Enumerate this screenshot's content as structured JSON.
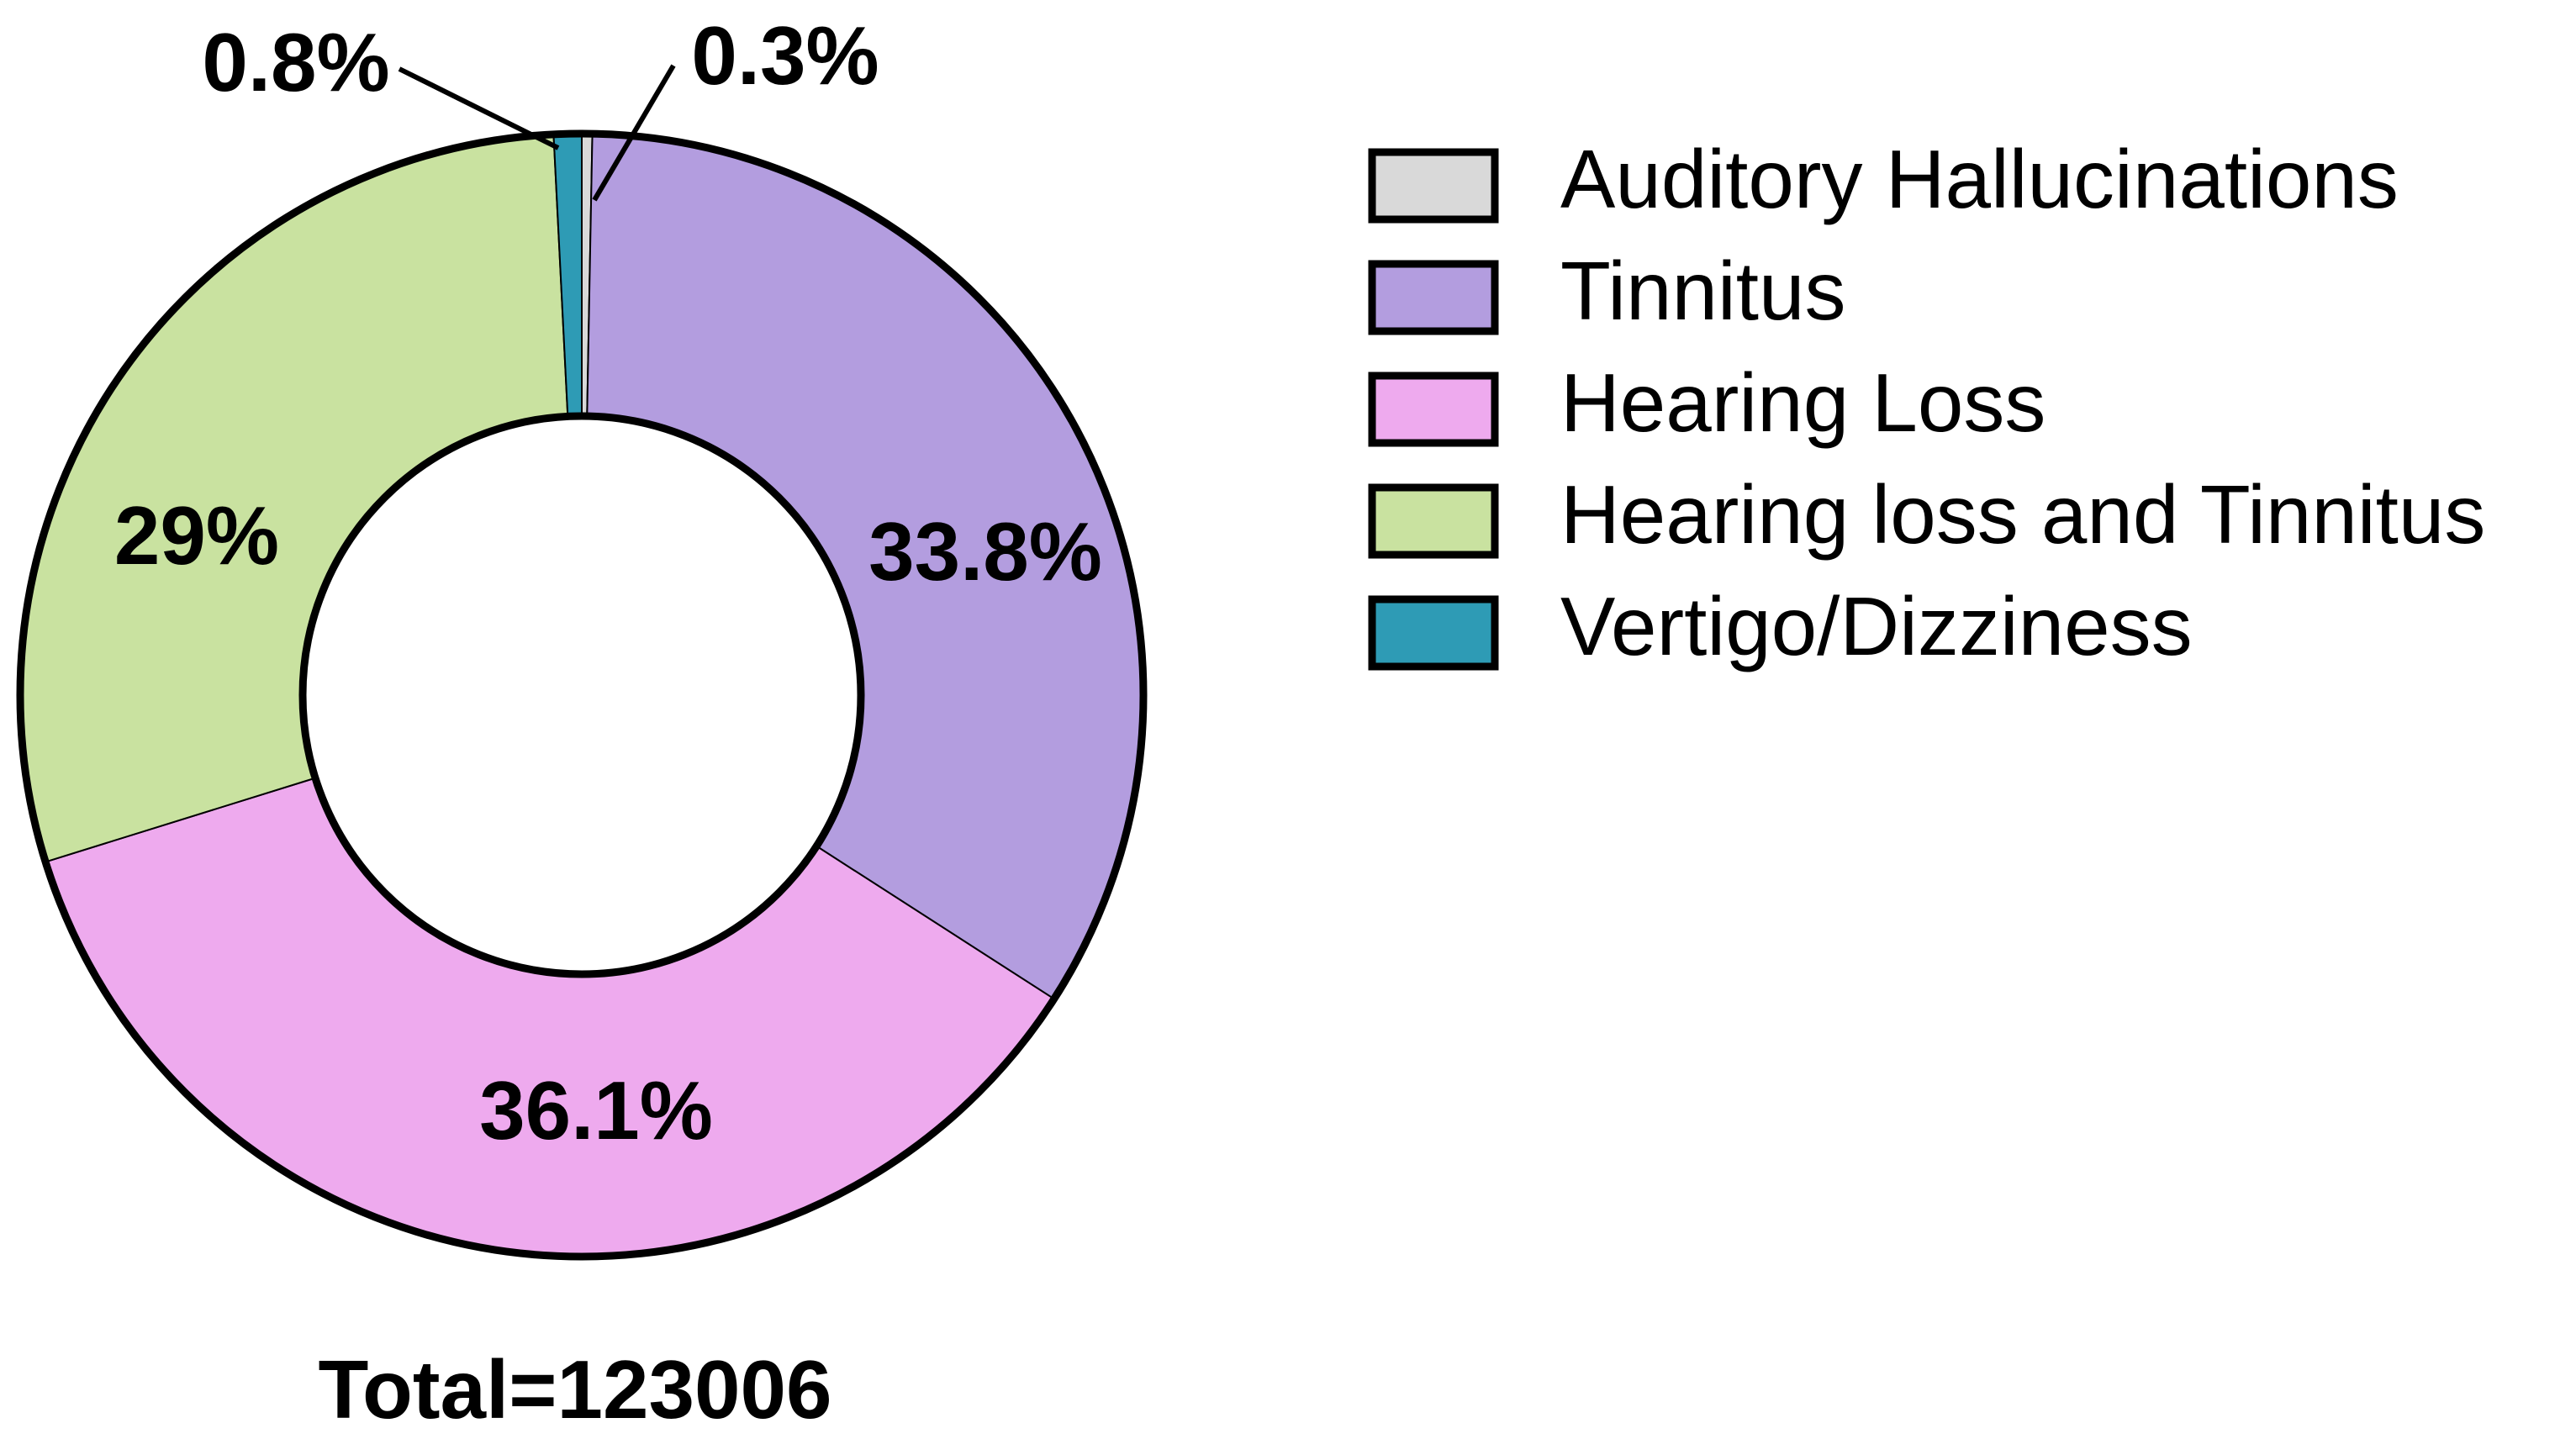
{
  "chart_data": {
    "type": "donut",
    "categories": [
      "Auditory Hallucinations",
      "Tinnitus",
      "Hearing Loss",
      "Hearing loss and Tinnitus",
      "Vertigo/Dizziness"
    ],
    "values": [
      0.3,
      33.8,
      36.1,
      29,
      0.8
    ],
    "value_labels": [
      "0.3%",
      "33.8%",
      "36.1%",
      "29%",
      "0.8%"
    ],
    "colors": [
      "#d9d9d9",
      "#b39ddf",
      "#eeaaee",
      "#c9e2a0",
      "#2e9bb5"
    ],
    "total_label": "Total=123006",
    "legend": "right"
  }
}
